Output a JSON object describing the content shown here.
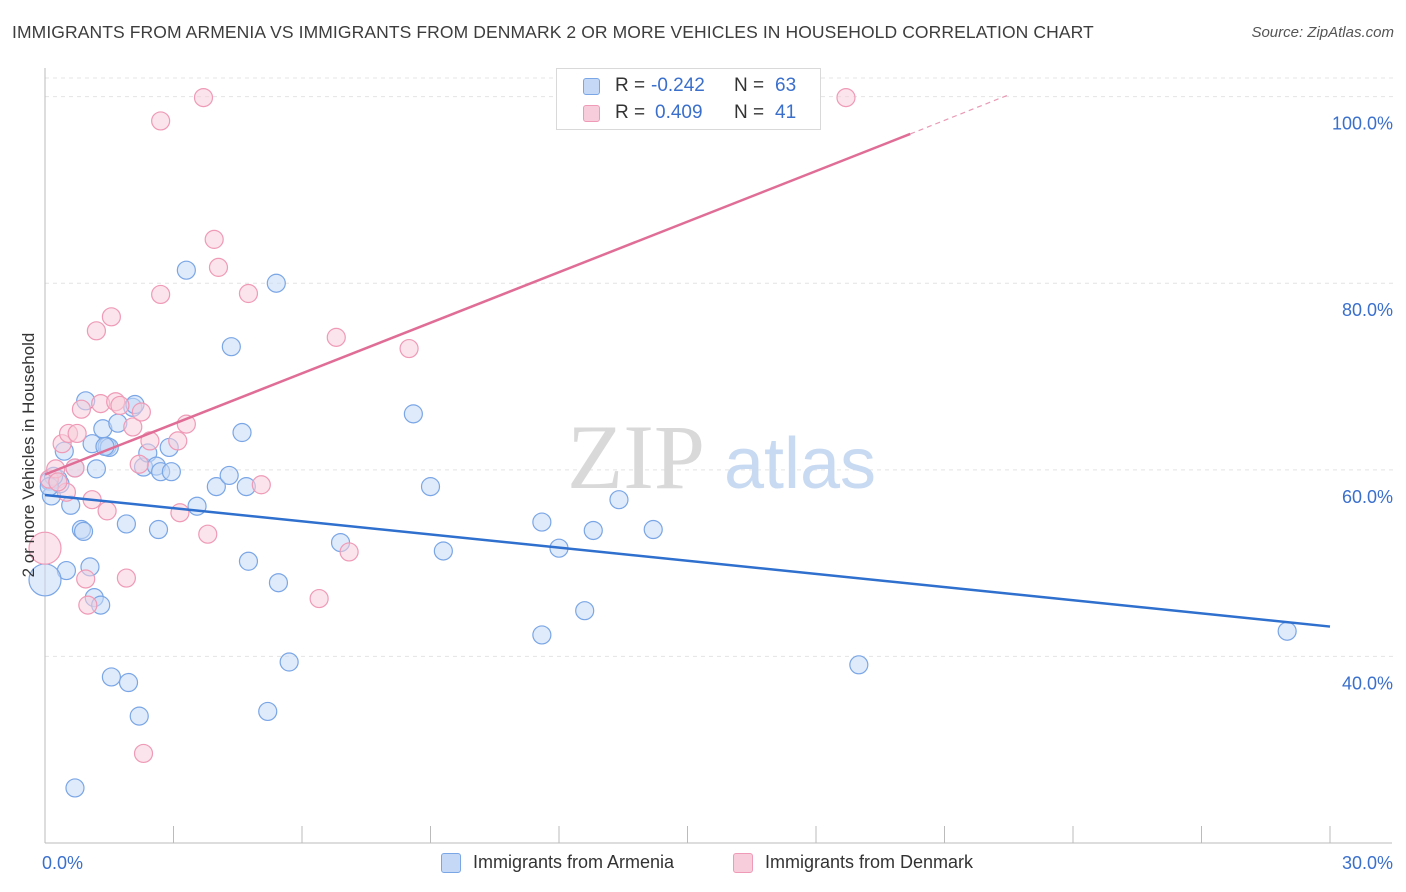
{
  "title": "IMMIGRANTS FROM ARMENIA VS IMMIGRANTS FROM DENMARK 2 OR MORE VEHICLES IN HOUSEHOLD CORRELATION CHART",
  "source": "Source: ZipAtlas.com",
  "watermark": {
    "zip": "ZIP",
    "atlas": "atlas"
  },
  "legend": {
    "rows": [
      {
        "r_label": "R =",
        "r_value": "-0.242",
        "n_label": "N =",
        "n_value": "63"
      },
      {
        "r_label": "R =",
        "r_value": "0.409",
        "n_label": "N =",
        "n_value": "41"
      }
    ]
  },
  "chart_data": {
    "type": "scatter",
    "title": "IMMIGRANTS FROM ARMENIA VS IMMIGRANTS FROM DENMARK 2 OR MORE VEHICLES IN HOUSEHOLD CORRELATION CHART",
    "xlabel": "",
    "ylabel": "2 or more Vehicles in Household",
    "xlim": [
      0,
      30
    ],
    "ylim": [
      20,
      102
    ],
    "x_tick_labels": [
      "0.0%",
      "30.0%"
    ],
    "y_ticks": [
      40,
      60,
      80,
      100
    ],
    "y_tick_labels": [
      "40.0%",
      "60.0%",
      "80.0%",
      "100.0%"
    ],
    "grid": true,
    "legend_position": "top-center",
    "series": [
      {
        "name": "Immigrants from Armenia",
        "color": "#7aa6e6",
        "fill": "#c5d8f5",
        "trend_color": "#2f6fce",
        "trend": {
          "x": [
            0,
            30
          ],
          "y": [
            57.3,
            43.2
          ]
        },
        "points": [
          {
            "x": 0.1,
            "y": 58.8
          },
          {
            "x": 0.15,
            "y": 57.2
          },
          {
            "x": 0.3,
            "y": 59.0
          },
          {
            "x": 0.35,
            "y": 58.5
          },
          {
            "x": 0.45,
            "y": 62.0
          },
          {
            "x": 0.5,
            "y": 49.2
          },
          {
            "x": 0.6,
            "y": 56.2
          },
          {
            "x": 0.7,
            "y": 60.2
          },
          {
            "x": 0.85,
            "y": 53.6
          },
          {
            "x": 0.9,
            "y": 53.4
          },
          {
            "x": 0.95,
            "y": 67.4
          },
          {
            "x": 1.05,
            "y": 49.6
          },
          {
            "x": 1.1,
            "y": 62.8
          },
          {
            "x": 1.15,
            "y": 46.3
          },
          {
            "x": 1.2,
            "y": 60.1
          },
          {
            "x": 1.3,
            "y": 45.5
          },
          {
            "x": 1.35,
            "y": 64.4
          },
          {
            "x": 1.45,
            "y": 62.5
          },
          {
            "x": 1.5,
            "y": 62.4
          },
          {
            "x": 1.55,
            "y": 37.8
          },
          {
            "x": 1.7,
            "y": 65.0
          },
          {
            "x": 1.9,
            "y": 54.2
          },
          {
            "x": 1.95,
            "y": 37.2
          },
          {
            "x": 2.05,
            "y": 66.7
          },
          {
            "x": 2.1,
            "y": 67.0
          },
          {
            "x": 2.2,
            "y": 33.6
          },
          {
            "x": 2.3,
            "y": 60.3
          },
          {
            "x": 2.4,
            "y": 61.8
          },
          {
            "x": 2.6,
            "y": 60.4
          },
          {
            "x": 2.65,
            "y": 53.6
          },
          {
            "x": 2.7,
            "y": 59.8
          },
          {
            "x": 2.9,
            "y": 62.4
          },
          {
            "x": 2.95,
            "y": 59.8
          },
          {
            "x": 3.3,
            "y": 81.4
          },
          {
            "x": 3.55,
            "y": 56.1
          },
          {
            "x": 4.0,
            "y": 58.2
          },
          {
            "x": 4.3,
            "y": 59.4
          },
          {
            "x": 4.35,
            "y": 73.2
          },
          {
            "x": 4.6,
            "y": 64.0
          },
          {
            "x": 4.7,
            "y": 58.2
          },
          {
            "x": 4.75,
            "y": 50.2
          },
          {
            "x": 5.2,
            "y": 34.1
          },
          {
            "x": 5.4,
            "y": 80.0
          },
          {
            "x": 5.45,
            "y": 47.9
          },
          {
            "x": 5.7,
            "y": 39.4
          },
          {
            "x": 6.9,
            "y": 52.2
          },
          {
            "x": 8.6,
            "y": 66.0
          },
          {
            "x": 9.0,
            "y": 58.2
          },
          {
            "x": 9.3,
            "y": 51.3
          },
          {
            "x": 11.6,
            "y": 54.4
          },
          {
            "x": 11.6,
            "y": 42.3
          },
          {
            "x": 12.0,
            "y": 51.6
          },
          {
            "x": 12.6,
            "y": 44.9
          },
          {
            "x": 12.8,
            "y": 53.5
          },
          {
            "x": 13.4,
            "y": 56.8
          },
          {
            "x": 14.2,
            "y": 53.6
          },
          {
            "x": 19.0,
            "y": 39.1
          },
          {
            "x": 29.0,
            "y": 42.7
          },
          {
            "x": 0.0,
            "y": 48.2
          },
          {
            "x": 0.7,
            "y": 25.9
          },
          {
            "x": 0.2,
            "y": 59.3
          },
          {
            "x": 0.1,
            "y": 58.2
          },
          {
            "x": 1.4,
            "y": 62.5
          }
        ]
      },
      {
        "name": "Immigrants from Denmark",
        "color": "#ef9ab6",
        "fill": "#f8cddb",
        "trend_color": "#e06d96",
        "trend": {
          "x": [
            0,
            20.2
          ],
          "y": [
            59.5,
            96.0
          ]
        },
        "trend_extension": {
          "x": [
            20.2,
            22.5
          ],
          "y": [
            96.0,
            100.2
          ]
        },
        "points": [
          {
            "x": 0.1,
            "y": 59.0
          },
          {
            "x": 0.4,
            "y": 62.8
          },
          {
            "x": 0.5,
            "y": 57.6
          },
          {
            "x": 0.55,
            "y": 63.9
          },
          {
            "x": 0.7,
            "y": 60.2
          },
          {
            "x": 0.75,
            "y": 63.9
          },
          {
            "x": 0.85,
            "y": 66.5
          },
          {
            "x": 0.95,
            "y": 48.3
          },
          {
            "x": 1.0,
            "y": 45.5
          },
          {
            "x": 1.1,
            "y": 56.8
          },
          {
            "x": 1.2,
            "y": 74.9
          },
          {
            "x": 1.3,
            "y": 67.1
          },
          {
            "x": 1.45,
            "y": 55.6
          },
          {
            "x": 1.55,
            "y": 76.4
          },
          {
            "x": 1.65,
            "y": 67.3
          },
          {
            "x": 1.75,
            "y": 66.9
          },
          {
            "x": 1.9,
            "y": 48.4
          },
          {
            "x": 2.05,
            "y": 64.6
          },
          {
            "x": 2.2,
            "y": 60.6
          },
          {
            "x": 2.25,
            "y": 66.2
          },
          {
            "x": 2.3,
            "y": 29.6
          },
          {
            "x": 2.45,
            "y": 63.1
          },
          {
            "x": 2.7,
            "y": 97.4
          },
          {
            "x": 2.7,
            "y": 78.8
          },
          {
            "x": 3.1,
            "y": 63.1
          },
          {
            "x": 3.15,
            "y": 55.4
          },
          {
            "x": 3.3,
            "y": 64.9
          },
          {
            "x": 3.7,
            "y": 99.9
          },
          {
            "x": 3.8,
            "y": 53.1
          },
          {
            "x": 3.95,
            "y": 84.7
          },
          {
            "x": 4.05,
            "y": 81.7
          },
          {
            "x": 4.75,
            "y": 78.9
          },
          {
            "x": 5.05,
            "y": 58.4
          },
          {
            "x": 6.4,
            "y": 46.2
          },
          {
            "x": 6.8,
            "y": 74.2
          },
          {
            "x": 7.1,
            "y": 51.2
          },
          {
            "x": 8.5,
            "y": 73.0
          },
          {
            "x": 18.7,
            "y": 99.9
          },
          {
            "x": 0.0,
            "y": 51.6
          },
          {
            "x": 0.25,
            "y": 60.1
          },
          {
            "x": 0.3,
            "y": 58.7
          }
        ]
      }
    ]
  }
}
